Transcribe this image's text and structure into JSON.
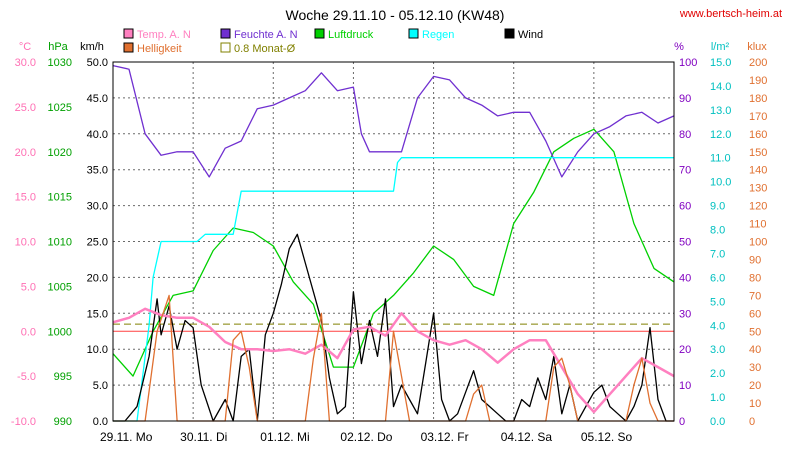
{
  "chart_data": {
    "type": "line",
    "title": "Woche 29.11.10 - 05.12.10 (KW48)",
    "source_url": "www.bertsch-heim.at",
    "x_labels": [
      "29.11. Mo",
      "30.11. Di",
      "01.12. Mi",
      "02.12. Do",
      "03.12. Fr",
      "04.12. Sa",
      "05.12. So"
    ],
    "axes": {
      "temp": {
        "unit": "°C",
        "color": "#ff6fb4",
        "range": [
          -10,
          30
        ],
        "ticks": [
          "-10.0",
          "-5.0",
          "0.0",
          "5.0",
          "10.0",
          "15.0",
          "20.0",
          "25.0",
          "30.0"
        ]
      },
      "pressure": {
        "unit": "hPa",
        "color": "#00a000",
        "range": [
          990,
          1030
        ],
        "ticks": [
          "990",
          "995",
          "1000",
          "1005",
          "1010",
          "1015",
          "1020",
          "1025",
          "1030"
        ]
      },
      "wind": {
        "unit": "km/h",
        "color": "#000000",
        "range": [
          0,
          50
        ],
        "ticks": [
          "0.0",
          "5.0",
          "10.0",
          "15.0",
          "20.0",
          "25.0",
          "30.0",
          "35.0",
          "40.0",
          "45.0",
          "50.0"
        ]
      },
      "humidity": {
        "unit": "%",
        "color": "#8000c0",
        "range": [
          0,
          100
        ],
        "ticks": [
          "0",
          "10",
          "20",
          "30",
          "40",
          "50",
          "60",
          "70",
          "80",
          "90",
          "100"
        ]
      },
      "rain": {
        "unit": "l/m²",
        "color": "#00c0c0",
        "range": [
          0,
          15
        ],
        "ticks": [
          "0.0",
          "1.0",
          "2.0",
          "3.0",
          "4.0",
          "5.0",
          "6.0",
          "7.0",
          "8.0",
          "9.0",
          "10.0",
          "11.0",
          "12.0",
          "13.0",
          "14.0",
          "15.0"
        ]
      },
      "brightness": {
        "unit": "klux",
        "color": "#e07030",
        "range": [
          0,
          200
        ],
        "ticks": [
          "0",
          "10",
          "20",
          "30",
          "40",
          "50",
          "60",
          "70",
          "80",
          "90",
          "100",
          "110",
          "120",
          "130",
          "140",
          "150",
          "160",
          "170",
          "180",
          "190",
          "200"
        ]
      }
    },
    "legend": [
      {
        "name": "Temp. A. N",
        "color": "#ff80c0"
      },
      {
        "name": "Feuchte A. N",
        "color": "#7030d0"
      },
      {
        "name": "Luftdruck",
        "color": "#00d000"
      },
      {
        "name": "Regen",
        "color": "#00ffff"
      },
      {
        "name": "Wind",
        "color": "#000000"
      },
      {
        "name": "Helligkeit",
        "color": "#e07030"
      },
      {
        "name": "0.8 Monat-Ø",
        "color": "#808000"
      }
    ],
    "reference_lines": {
      "zero_temp_c": 0.0,
      "monthly_avg_temp_c": 0.8
    },
    "grid": true,
    "series": [
      {
        "key": "pressure",
        "name": "Luftdruck",
        "color": "#00d000",
        "axis": "pressure",
        "x": [
          0,
          0.25,
          0.5,
          0.75,
          1.0,
          1.25,
          1.5,
          1.75,
          2.0,
          2.25,
          2.5,
          2.75,
          3.0,
          3.25,
          3.5,
          3.75,
          4.0,
          4.25,
          4.5,
          4.75,
          5.0,
          5.25,
          5.5,
          5.75,
          6.0,
          6.25,
          6.5,
          6.75,
          7.0
        ],
        "y": [
          997.5,
          995.0,
          1000.0,
          1004.0,
          1004.5,
          1009.0,
          1011.5,
          1011.0,
          1009.5,
          1005.5,
          1003.0,
          996.0,
          996.0,
          1002.0,
          1004.0,
          1006.5,
          1009.5,
          1008.0,
          1005.0,
          1004.0,
          1012.0,
          1015.5,
          1020.0,
          1021.5,
          1022.5,
          1020.0,
          1012.0,
          1007.0,
          1005.5
        ]
      },
      {
        "key": "humidity",
        "name": "Feuchte A. N",
        "color": "#7030d0",
        "axis": "humidity",
        "x": [
          0,
          0.2,
          0.4,
          0.6,
          0.8,
          1.0,
          1.2,
          1.4,
          1.6,
          1.8,
          2.0,
          2.2,
          2.4,
          2.6,
          2.8,
          3.0,
          3.1,
          3.2,
          3.4,
          3.6,
          3.8,
          4.0,
          4.2,
          4.4,
          4.6,
          4.8,
          5.0,
          5.2,
          5.4,
          5.6,
          5.8,
          6.0,
          6.2,
          6.4,
          6.6,
          6.8,
          7.0
        ],
        "y": [
          99,
          98,
          80,
          74,
          75,
          75,
          68,
          76,
          78,
          87,
          88,
          90,
          92,
          97,
          92,
          93,
          80,
          75,
          75,
          75,
          90,
          96,
          95,
          90,
          88,
          85,
          86,
          86,
          78,
          68,
          75,
          80,
          82,
          85,
          86,
          83,
          85
        ]
      },
      {
        "key": "rain",
        "name": "Regen",
        "color": "#00ffff",
        "axis": "rain",
        "x": [
          0,
          0.3,
          0.45,
          0.5,
          0.6,
          0.65,
          0.8,
          1.05,
          1.15,
          1.25,
          1.5,
          1.6,
          2.0,
          2.8,
          3.5,
          3.55,
          3.6,
          4.0,
          5.0,
          6.0,
          7.0
        ],
        "y": [
          0.0,
          0.0,
          4.0,
          6.0,
          7.5,
          7.5,
          7.5,
          7.5,
          7.8,
          7.8,
          7.8,
          9.6,
          9.6,
          9.6,
          9.6,
          10.8,
          11.0,
          11.0,
          11.0,
          11.0,
          11.0
        ]
      },
      {
        "key": "wind",
        "name": "Wind",
        "color": "#000000",
        "axis": "wind",
        "x": [
          0,
          0.15,
          0.3,
          0.45,
          0.55,
          0.6,
          0.7,
          0.8,
          0.9,
          1.0,
          1.1,
          1.25,
          1.4,
          1.5,
          1.6,
          1.7,
          1.8,
          1.9,
          2.0,
          2.1,
          2.2,
          2.3,
          2.4,
          2.5,
          2.6,
          2.7,
          2.8,
          2.9,
          3.0,
          3.1,
          3.2,
          3.3,
          3.4,
          3.5,
          3.6,
          3.7,
          3.8,
          3.9,
          4.0,
          4.1,
          4.2,
          4.3,
          4.4,
          4.5,
          4.6,
          4.7,
          4.8,
          4.9,
          5.0,
          5.1,
          5.2,
          5.3,
          5.4,
          5.5,
          5.6,
          5.7,
          5.8,
          5.9,
          6.0,
          6.1,
          6.2,
          6.3,
          6.4,
          6.5,
          6.6,
          6.7,
          6.8,
          6.9,
          7.0
        ],
        "y": [
          0,
          0,
          2,
          9,
          17,
          12,
          16,
          10,
          14,
          13,
          5,
          0,
          3,
          0,
          9,
          10,
          0,
          12,
          15,
          19,
          24,
          26,
          22,
          18,
          14,
          6,
          1,
          2,
          18,
          8,
          14,
          9,
          17,
          2,
          5,
          3,
          1,
          8,
          15,
          3,
          0,
          1,
          4,
          7,
          3,
          2,
          1,
          0,
          0,
          3,
          2,
          6,
          3,
          9,
          1,
          5,
          0,
          2,
          4,
          5,
          2,
          1,
          0,
          2,
          5,
          13,
          3,
          0,
          0
        ]
      },
      {
        "key": "temp",
        "name": "Temp. A. N",
        "color": "#ff80c0",
        "axis": "temp",
        "x": [
          0,
          0.2,
          0.4,
          0.6,
          0.8,
          1.0,
          1.2,
          1.4,
          1.6,
          1.8,
          2.0,
          2.2,
          2.4,
          2.6,
          2.8,
          3.0,
          3.2,
          3.4,
          3.6,
          3.8,
          4.0,
          4.2,
          4.4,
          4.6,
          4.8,
          5.0,
          5.2,
          5.4,
          5.6,
          5.8,
          6.0,
          6.2,
          6.4,
          6.6,
          6.8,
          7.0
        ],
        "y": [
          1.0,
          1.5,
          2.5,
          1.8,
          1.5,
          1.5,
          0.5,
          -1.2,
          -2.0,
          -2.0,
          -2.2,
          -2.0,
          -2.5,
          -1.5,
          -3.0,
          0.2,
          0.5,
          -0.5,
          2.0,
          0.0,
          -1.0,
          -1.5,
          -1.0,
          -2.0,
          -3.5,
          -2.0,
          -1.0,
          -1.0,
          -4.0,
          -7.0,
          -9.0,
          -7.0,
          -5.0,
          -3.0,
          -4.0,
          -5.0
        ]
      },
      {
        "key": "brightness",
        "name": "Helligkeit",
        "color": "#e07030",
        "axis": "brightness",
        "x": [
          0,
          0.4,
          0.55,
          0.7,
          0.8,
          1.4,
          1.5,
          1.6,
          1.7,
          1.8,
          2.4,
          2.5,
          2.6,
          2.7,
          3.4,
          3.5,
          3.6,
          3.7,
          3.8,
          4.4,
          4.5,
          4.6,
          4.7,
          5.4,
          5.5,
          5.6,
          5.7,
          5.8,
          6.4,
          6.5,
          6.6,
          6.7,
          6.8,
          7.0
        ],
        "y": [
          0,
          0,
          50,
          70,
          0,
          0,
          45,
          50,
          30,
          0,
          0,
          35,
          60,
          0,
          0,
          50,
          25,
          0,
          0,
          0,
          15,
          20,
          0,
          0,
          30,
          35,
          20,
          0,
          0,
          20,
          35,
          10,
          0,
          0
        ]
      }
    ]
  }
}
